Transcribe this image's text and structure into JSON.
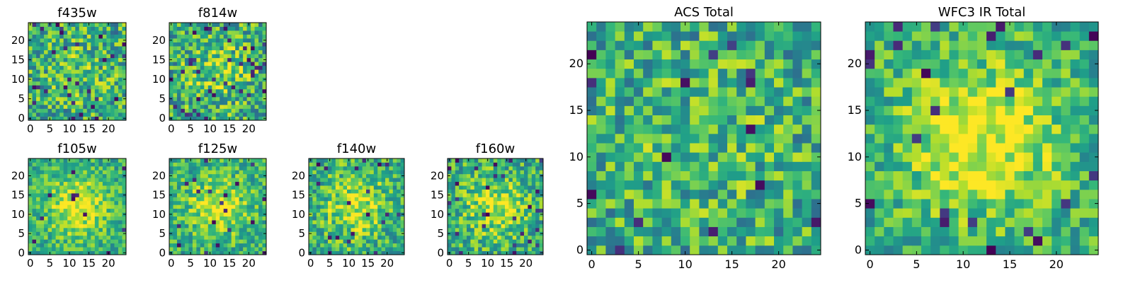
{
  "figure": {
    "background": "#ffffff"
  },
  "colormap": {
    "name": "viridis",
    "stops": [
      "#440154",
      "#482878",
      "#3e4989",
      "#31688e",
      "#26828e",
      "#1f9e89",
      "#35b779",
      "#6ece58",
      "#b5de2b",
      "#fde725"
    ]
  },
  "chart_data": [
    {
      "type": "heatmap",
      "title": "f435w",
      "rows": 25,
      "cols": 25,
      "xlim": [
        0,
        24
      ],
      "ylim": [
        0,
        24
      ],
      "xticks": [
        "0",
        "5",
        "10",
        "15",
        "20"
      ],
      "yticks": [
        "0",
        "5",
        "10",
        "15",
        "20"
      ],
      "value_range": [
        0,
        1
      ],
      "center_boost": 0.1,
      "noise": 0.3,
      "seed": 11,
      "dark_fraction": 0.04
    },
    {
      "type": "heatmap",
      "title": "f814w",
      "rows": 25,
      "cols": 25,
      "xlim": [
        0,
        24
      ],
      "ylim": [
        0,
        24
      ],
      "xticks": [
        "0",
        "5",
        "10",
        "15",
        "20"
      ],
      "yticks": [
        "0",
        "5",
        "10",
        "15",
        "20"
      ],
      "value_range": [
        0,
        1
      ],
      "center_boost": 0.18,
      "noise": 0.3,
      "seed": 23,
      "dark_fraction": 0.05
    },
    {
      "type": "heatmap",
      "title": "f105w",
      "rows": 25,
      "cols": 25,
      "xlim": [
        0,
        24
      ],
      "ylim": [
        0,
        24
      ],
      "xticks": [
        "0",
        "5",
        "10",
        "15",
        "20"
      ],
      "yticks": [
        "0",
        "5",
        "10",
        "15",
        "20"
      ],
      "value_range": [
        0,
        1
      ],
      "center_boost": 0.35,
      "noise": 0.2,
      "seed": 37,
      "dark_fraction": 0.02
    },
    {
      "type": "heatmap",
      "title": "f125w",
      "rows": 25,
      "cols": 25,
      "xlim": [
        0,
        24
      ],
      "ylim": [
        0,
        24
      ],
      "xticks": [
        "0",
        "5",
        "10",
        "15",
        "20"
      ],
      "yticks": [
        "0",
        "5",
        "10",
        "15",
        "20"
      ],
      "value_range": [
        0,
        1
      ],
      "center_boost": 0.3,
      "noise": 0.22,
      "seed": 41,
      "dark_fraction": 0.03
    },
    {
      "type": "heatmap",
      "title": "f140w",
      "rows": 25,
      "cols": 25,
      "xlim": [
        0,
        24
      ],
      "ylim": [
        0,
        24
      ],
      "xticks": [
        "0",
        "5",
        "10",
        "15",
        "20"
      ],
      "yticks": [
        "0",
        "5",
        "10",
        "15",
        "20"
      ],
      "value_range": [
        0,
        1
      ],
      "center_boost": 0.3,
      "noise": 0.25,
      "seed": 53,
      "dark_fraction": 0.04
    },
    {
      "type": "heatmap",
      "title": "f160w",
      "rows": 25,
      "cols": 25,
      "xlim": [
        0,
        24
      ],
      "ylim": [
        0,
        24
      ],
      "xticks": [
        "0",
        "5",
        "10",
        "15",
        "20"
      ],
      "yticks": [
        "0",
        "5",
        "10",
        "15",
        "20"
      ],
      "value_range": [
        0,
        1
      ],
      "center_boost": 0.3,
      "noise": 0.25,
      "seed": 67,
      "dark_fraction": 0.04
    },
    {
      "type": "heatmap",
      "title": "ACS Total",
      "rows": 25,
      "cols": 25,
      "xlim": [
        0,
        24
      ],
      "ylim": [
        0,
        24
      ],
      "xticks": [
        "0",
        "5",
        "10",
        "15",
        "20"
      ],
      "yticks": [
        "0",
        "5",
        "10",
        "15",
        "20"
      ],
      "value_range": [
        0,
        1
      ],
      "center_boost": 0.08,
      "noise": 0.28,
      "seed": 79,
      "dark_fraction": 0.03
    },
    {
      "type": "heatmap",
      "title": "WFC3 IR Total",
      "rows": 25,
      "cols": 25,
      "xlim": [
        0,
        24
      ],
      "ylim": [
        0,
        24
      ],
      "xticks": [
        "0",
        "5",
        "10",
        "15",
        "20"
      ],
      "yticks": [
        "0",
        "5",
        "10",
        "15",
        "20"
      ],
      "value_range": [
        0,
        1
      ],
      "center_boost": 0.4,
      "noise": 0.22,
      "seed": 97,
      "dark_fraction": 0.04
    }
  ]
}
